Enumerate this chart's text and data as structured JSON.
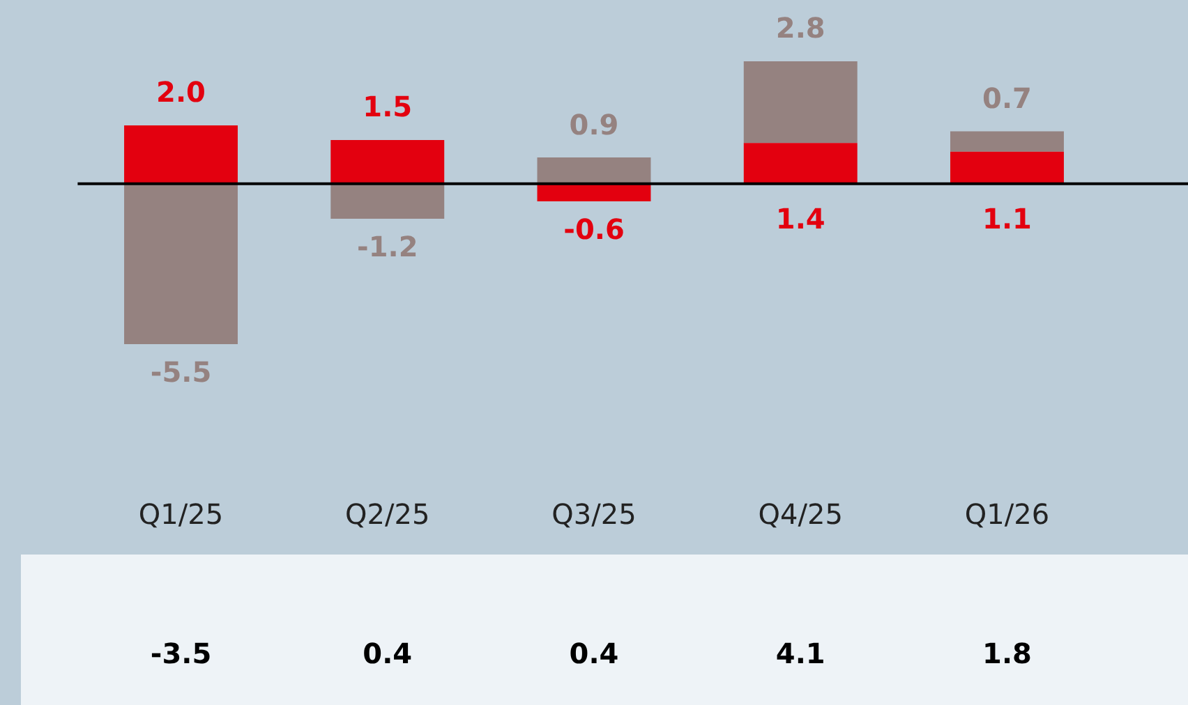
{
  "chart_data": {
    "type": "bar",
    "stacked": true,
    "categories": [
      "Q1/25",
      "Q2/25",
      "Q3/25",
      "Q4/25",
      "Q1/26"
    ],
    "series": [
      {
        "color": "#e3000f",
        "values": [
          2.0,
          1.5,
          -0.6,
          1.4,
          1.1
        ],
        "value_labels": [
          "2.0",
          "1.5",
          "-0.6",
          "1.4",
          "1.1"
        ]
      },
      {
        "color": "#958280",
        "values": [
          -5.5,
          -1.2,
          0.9,
          2.8,
          0.7
        ],
        "value_labels": [
          "-5.5",
          "-1.2",
          "0.9",
          "2.8",
          "0.7"
        ]
      }
    ],
    "annotations": [
      "-3.5",
      "0.4",
      "0.4",
      "4.1",
      "1.8"
    ],
    "tick_labels": "x",
    "legend": false,
    "grid": false
  }
}
